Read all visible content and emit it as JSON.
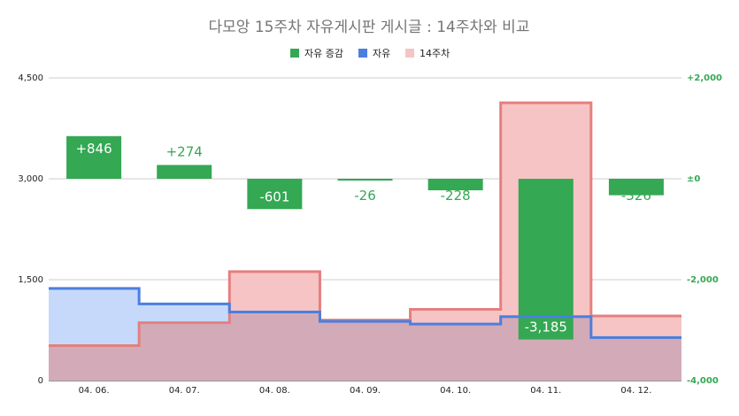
{
  "chart_data": {
    "type": "combo",
    "title": "다모앙 15주차 자유게시판 게시글 : 14주차와 비교",
    "categories": [
      "04. 06.",
      "04. 07.",
      "04. 08.",
      "04. 09.",
      "04. 10.",
      "04. 11.",
      "04. 12."
    ],
    "series": [
      {
        "name": "자유 증감",
        "type": "bar",
        "axis": "right",
        "values": [
          846,
          274,
          -601,
          -26,
          -228,
          -3185,
          -326
        ],
        "labels": [
          "+846",
          "+274",
          "-601",
          "-26",
          "-228",
          "-3,185",
          "-326"
        ]
      },
      {
        "name": "자유",
        "type": "stepped-area",
        "axis": "left",
        "values": [
          1370,
          1140,
          1020,
          880,
          840,
          950,
          640
        ]
      },
      {
        "name": "14주차",
        "type": "stepped-area",
        "axis": "left",
        "values": [
          520,
          860,
          1620,
          900,
          1060,
          4130,
          960
        ]
      }
    ],
    "left_axis": {
      "ylim": [
        0,
        4500
      ],
      "ticks": [
        0,
        1500,
        3000,
        4500
      ],
      "tick_labels": [
        "0",
        "1,500",
        "3,000",
        "4,500"
      ]
    },
    "right_axis": {
      "ylim": [
        -4000,
        2000
      ],
      "ticks": [
        -4000,
        -2000,
        0,
        2000
      ],
      "tick_labels": [
        "-4,000",
        "-2,000",
        "±0",
        "+2,000"
      ]
    },
    "legend_position": "top",
    "grid": true,
    "colors": {
      "change_bar": "#34a853",
      "jayu_line": "#4a7fe0",
      "jayu_fill": "#c6d9fb",
      "week14_line": "#e57f7f",
      "week14_fill": "#f6c4c4",
      "overlap_fill": "#d3aab8"
    }
  }
}
